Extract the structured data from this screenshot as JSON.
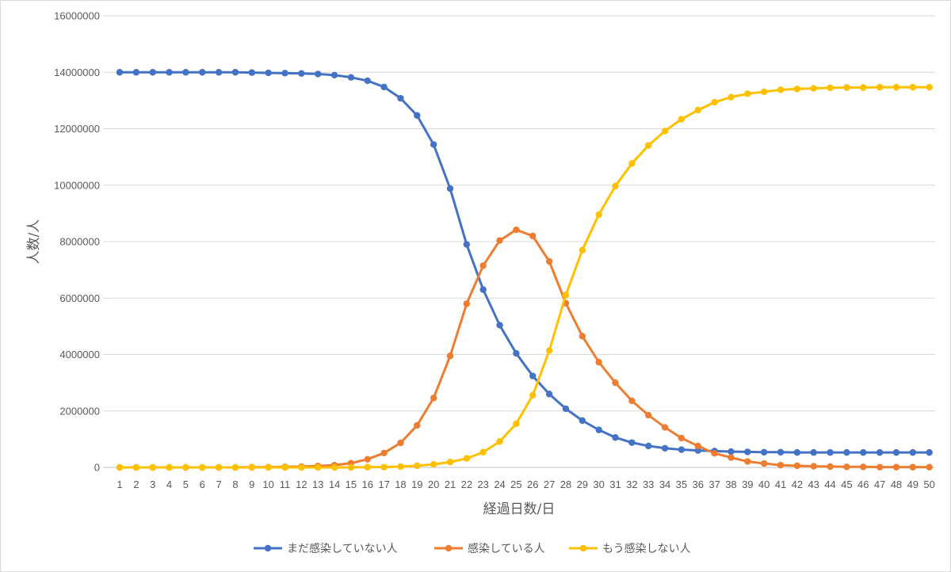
{
  "chart_data": {
    "type": "line",
    "title": "",
    "xlabel": "経過日数/日",
    "ylabel": "人数/人",
    "ylim": [
      0,
      16000000
    ],
    "yticks": [
      "0",
      "2000000",
      "4000000",
      "6000000",
      "8000000",
      "10000000",
      "12000000",
      "14000000",
      "16000000"
    ],
    "grid": true,
    "legend_position": "bottom",
    "categories": [
      "1",
      "2",
      "3",
      "4",
      "5",
      "6",
      "7",
      "8",
      "9",
      "10",
      "11",
      "12",
      "13",
      "14",
      "15",
      "16",
      "17",
      "18",
      "19",
      "20",
      "21",
      "22",
      "23",
      "24",
      "25",
      "26",
      "27",
      "28",
      "29",
      "30",
      "31",
      "32",
      "33",
      "34",
      "35",
      "36",
      "37",
      "38",
      "39",
      "40",
      "41",
      "42",
      "43",
      "44",
      "45",
      "46",
      "47",
      "48",
      "49",
      "50"
    ],
    "series": [
      {
        "name": "まだ感染していない人",
        "color": "#4472C4",
        "values": [
          14000000,
          14000000,
          14000000,
          14000000,
          14000000,
          14000000,
          14000000,
          14000000,
          13990000,
          13980000,
          13970000,
          13960000,
          13940000,
          13900000,
          13820000,
          13700000,
          13480000,
          13080000,
          12470000,
          11440000,
          9880000,
          7900000,
          6300000,
          5040000,
          4040000,
          3240000,
          2600000,
          2080000,
          1660000,
          1330000,
          1060000,
          880000,
          760000,
          680000,
          630000,
          600000,
          580000,
          560000,
          550000,
          540000,
          540000,
          530000,
          530000,
          530000,
          530000,
          530000,
          530000,
          530000,
          530000,
          530000
        ]
      },
      {
        "name": "感染している人",
        "color": "#ED7D31",
        "values": [
          0,
          0,
          0,
          0,
          0,
          0,
          0,
          0,
          10000,
          10000,
          20000,
          30000,
          50000,
          80000,
          150000,
          290000,
          510000,
          870000,
          1490000,
          2460000,
          3950000,
          5800000,
          7150000,
          8040000,
          8420000,
          8200000,
          7300000,
          5820000,
          4650000,
          3730000,
          3000000,
          2360000,
          1850000,
          1420000,
          1040000,
          760000,
          500000,
          350000,
          210000,
          140000,
          80000,
          60000,
          40000,
          30000,
          20000,
          20000,
          10000,
          10000,
          10000,
          10000
        ]
      },
      {
        "name": "もう感染しない人",
        "color": "#FFC000",
        "values": [
          0,
          0,
          0,
          0,
          0,
          0,
          0,
          0,
          0,
          0,
          0,
          0,
          0,
          0,
          0,
          10000,
          10000,
          30000,
          60000,
          110000,
          190000,
          320000,
          540000,
          920000,
          1550000,
          2560000,
          4140000,
          6110000,
          7700000,
          8960000,
          9970000,
          10770000,
          11410000,
          11920000,
          12340000,
          12660000,
          12940000,
          13120000,
          13240000,
          13310000,
          13380000,
          13410000,
          13430000,
          13450000,
          13460000,
          13460000,
          13470000,
          13470000,
          13470000,
          13470000
        ]
      }
    ]
  }
}
